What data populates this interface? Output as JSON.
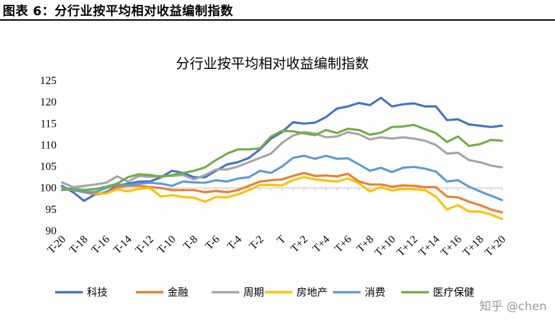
{
  "header": {
    "title": "图表 6：分行业按平均相对收益编制指数"
  },
  "watermark": "知乎 @chen",
  "chart_data": {
    "type": "line",
    "title": "分行业按平均相对收益编制指数",
    "xlabel": "",
    "ylabel": "",
    "ylim": [
      90,
      125
    ],
    "yticks": [
      90,
      95,
      100,
      105,
      110,
      115,
      120,
      125
    ],
    "x": [
      "T-20",
      "T-19",
      "T-18",
      "T-17",
      "T-16",
      "T-15",
      "T-14",
      "T-13",
      "T-12",
      "T-11",
      "T-10",
      "T-9",
      "T-8",
      "T-7",
      "T-6",
      "T-5",
      "T-4",
      "T-3",
      "T-2",
      "T-1",
      "T",
      "T+1",
      "T+2",
      "T+3",
      "T+4",
      "T+5",
      "T+6",
      "T+7",
      "T+8",
      "T+9",
      "T+10",
      "T+11",
      "T+12",
      "T+13",
      "T+14",
      "T+15",
      "T+16",
      "T+17",
      "T+18",
      "T+19",
      "T+20"
    ],
    "xtick_labels": [
      "T-20",
      "T-18",
      "T-16",
      "T-14",
      "T-12",
      "T-10",
      "T-8",
      "T-6",
      "T-4",
      "T-2",
      "T",
      "T+2",
      "T+4",
      "T+6",
      "T+8",
      "T+10",
      "T+12",
      "T+14",
      "T+16",
      "T+18",
      "T+20"
    ],
    "legend_position": "bottom",
    "grid": false,
    "series": [
      {
        "name": "科技",
        "color": "#4472C4",
        "values": [
          100.5,
          99.0,
          97.0,
          98.5,
          99.0,
          100.5,
          101.0,
          101.5,
          101.5,
          102.5,
          104.0,
          103.5,
          102.5,
          102.5,
          104.0,
          105.5,
          106.0,
          107.0,
          109.0,
          111.5,
          113.0,
          115.3,
          115.0,
          115.2,
          116.5,
          118.5,
          119.0,
          119.8,
          119.3,
          121.0,
          119.0,
          119.5,
          119.7,
          119.0,
          119.0,
          115.8,
          116.0,
          114.8,
          114.5,
          114.2,
          114.5
        ]
      },
      {
        "name": "金融",
        "color": "#ED7D31",
        "values": [
          100.0,
          99.8,
          99.0,
          98.5,
          98.8,
          100.2,
          100.5,
          100.5,
          100.2,
          100.0,
          99.5,
          99.5,
          99.5,
          99.0,
          99.3,
          99.0,
          99.5,
          100.5,
          101.5,
          101.8,
          102.0,
          102.8,
          103.5,
          102.8,
          102.9,
          102.7,
          103.3,
          101.5,
          100.8,
          100.8,
          100.3,
          100.6,
          100.5,
          100.2,
          100.2,
          98.0,
          97.8,
          96.8,
          96.0,
          95.0,
          94.3
        ]
      },
      {
        "name": "周期",
        "color": "#A5A5A5",
        "values": [
          101.3,
          100.2,
          100.5,
          100.8,
          101.2,
          102.7,
          101.5,
          102.8,
          102.6,
          102.8,
          102.8,
          103.0,
          102.0,
          103.0,
          104.3,
          104.3,
          105.0,
          106.0,
          107.0,
          108.0,
          110.5,
          112.2,
          113.0,
          112.7,
          111.8,
          112.0,
          113.0,
          112.5,
          111.3,
          111.8,
          111.5,
          111.8,
          111.5,
          111.0,
          110.0,
          108.0,
          108.2,
          106.5,
          106.0,
          105.2,
          104.8
        ]
      },
      {
        "name": "房地产",
        "color": "#FFC000",
        "values": [
          100.0,
          99.5,
          99.2,
          98.8,
          98.7,
          99.7,
          99.2,
          99.8,
          100.0,
          98.0,
          98.3,
          97.9,
          97.7,
          96.8,
          97.9,
          97.8,
          98.5,
          99.5,
          100.7,
          100.7,
          100.6,
          101.8,
          102.5,
          102.0,
          101.7,
          101.5,
          102.2,
          101.1,
          99.2,
          100.2,
          99.4,
          99.8,
          99.7,
          99.5,
          98.0,
          95.0,
          96.0,
          94.5,
          94.5,
          93.8,
          92.8
        ]
      },
      {
        "name": "消费",
        "color": "#5B9BD5",
        "values": [
          100.2,
          99.5,
          99.0,
          99.0,
          100.0,
          100.8,
          100.7,
          101.0,
          101.2,
          101.0,
          100.5,
          101.5,
          101.3,
          101.2,
          101.8,
          101.5,
          102.2,
          102.5,
          104.0,
          103.5,
          105.0,
          107.0,
          107.5,
          106.8,
          107.5,
          106.8,
          106.9,
          105.5,
          104.0,
          104.7,
          103.7,
          104.7,
          104.9,
          104.5,
          103.8,
          101.5,
          101.8,
          100.3,
          99.2,
          98.2,
          97.2
        ]
      },
      {
        "name": "医疗保健",
        "color": "#70AD47",
        "values": [
          99.5,
          99.8,
          99.5,
          99.7,
          100.3,
          101.0,
          102.5,
          103.2,
          103.0,
          102.6,
          103.0,
          103.5,
          104.0,
          104.8,
          106.5,
          108.0,
          109.0,
          109.0,
          109.2,
          112.0,
          113.3,
          113.2,
          112.7,
          112.3,
          113.5,
          112.8,
          113.8,
          113.5,
          112.4,
          112.9,
          114.2,
          114.3,
          114.7,
          113.7,
          112.8,
          110.7,
          112.0,
          109.8,
          110.2,
          111.2,
          111.0
        ]
      }
    ]
  }
}
